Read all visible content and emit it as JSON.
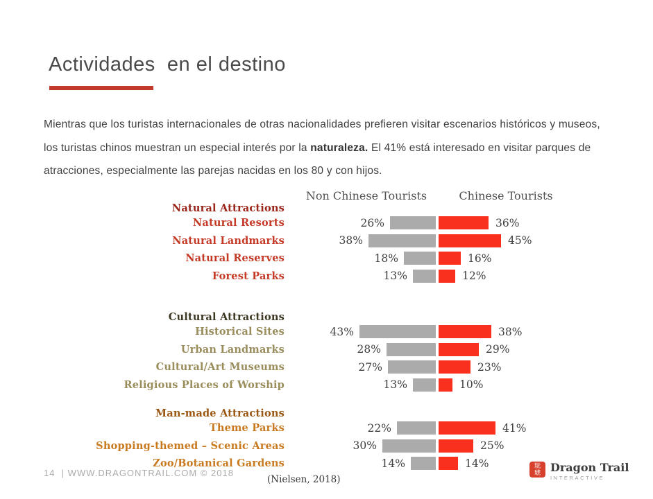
{
  "header": {
    "title": "Actividades  en el destino"
  },
  "intro": {
    "part1": "Mientras que los turistas internacionales de otras nacionalidades prefieren visitar escenarios históricos y museos, los turistas chinos muestran un especial interés por la ",
    "bold": "naturaleza.",
    "part2": " El 41% está interesado en visitar parques de atracciones, especialmente las parejas nacidas en los 80 y con hijos."
  },
  "colors": {
    "accent_rule": "#c0392b",
    "non_chinese_bar": "#ababab",
    "chinese_bar": "#f9301e",
    "title_text": "#4a4a4a",
    "footer_text": "#ababab",
    "logo_red": "#d6402c"
  },
  "chart_data": {
    "type": "bar",
    "variant": "diverging-horizontal",
    "value_suffix": "%",
    "grid": false,
    "legend_position": "top",
    "column_headers": [
      "Non Chinese Tourists",
      "Chinese Tourists"
    ],
    "series": [
      {
        "name": "Non Chinese Tourists",
        "color": "#ababab",
        "side": "left"
      },
      {
        "name": "Chinese Tourists",
        "color": "#f9301e",
        "side": "right"
      }
    ],
    "sections": [
      {
        "header": "Natural Attractions",
        "header_color": "#9b241a",
        "item_color": "#c43a26",
        "items": [
          {
            "label": "Natural Resorts",
            "non_chinese": 26,
            "chinese": 36
          },
          {
            "label": "Natural Landmarks",
            "non_chinese": 38,
            "chinese": 45
          },
          {
            "label": "Natural Reserves",
            "non_chinese": 18,
            "chinese": 16
          },
          {
            "label": "Forest Parks",
            "non_chinese": 13,
            "chinese": 12
          }
        ]
      },
      {
        "header": "Cultural Attractions",
        "header_color": "#3c3722",
        "item_color": "#9a8d5c",
        "items": [
          {
            "label": "Historical Sites",
            "non_chinese": 43,
            "chinese": 38
          },
          {
            "label": "Urban Landmarks",
            "non_chinese": 28,
            "chinese": 29
          },
          {
            "label": "Cultural/Art Museums",
            "non_chinese": 27,
            "chinese": 23
          },
          {
            "label": "Religious Places of Worship",
            "non_chinese": 13,
            "chinese": 10
          }
        ]
      },
      {
        "header": "Man-made Attractions",
        "header_color": "#9a5713",
        "item_color": "#c97a20",
        "items": [
          {
            "label": "Theme Parks",
            "non_chinese": 22,
            "chinese": 41
          },
          {
            "label": "Shopping-themed – Scenic Areas",
            "non_chinese": 30,
            "chinese": 25
          },
          {
            "label": "Zoo/Botanical Gardens",
            "non_chinese": 14,
            "chinese": 14
          }
        ]
      }
    ]
  },
  "footer": {
    "page_info": "14  | WWW.DRAGONTRAIL.COM © 2018",
    "source": "(Nielsen, 2018)",
    "logo": {
      "mark_top": "玩",
      "mark_bottom": "琥",
      "name": "Dragon Trail",
      "subtitle": "INTERACTIVE"
    }
  }
}
